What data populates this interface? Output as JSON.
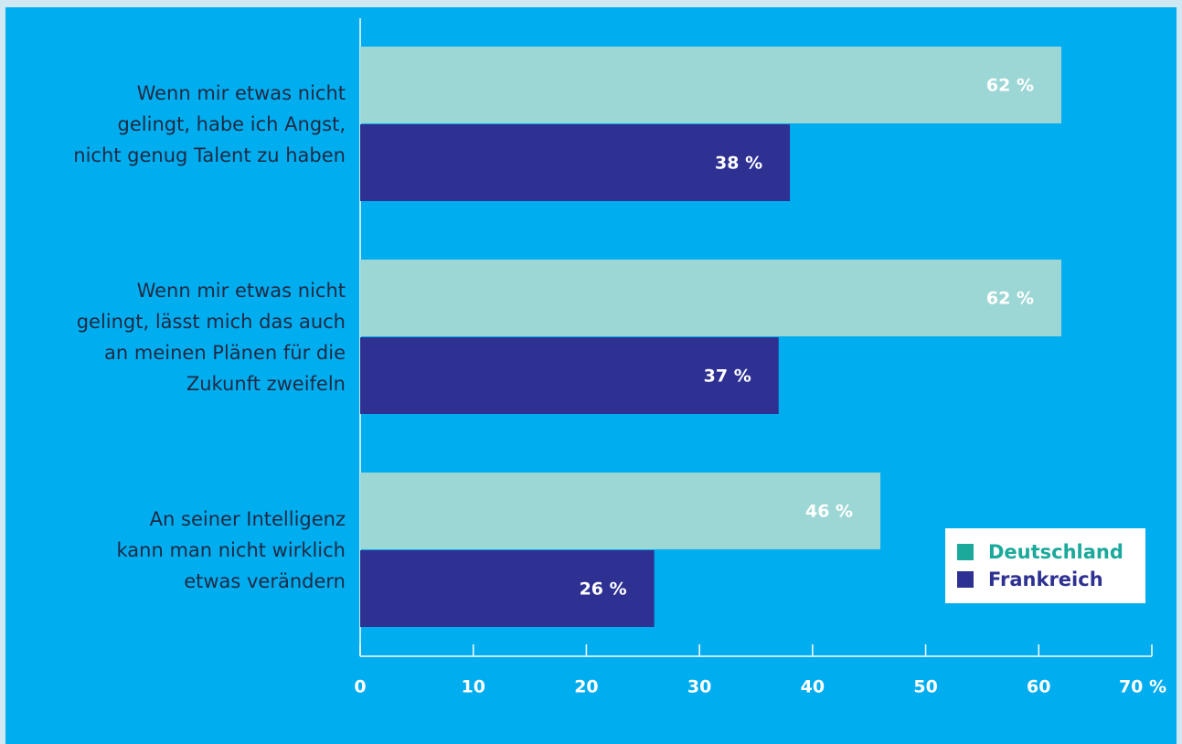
{
  "chart_data": {
    "type": "bar",
    "orientation": "horizontal",
    "categories": [
      "Wenn mir etwas nicht\ngelingt, habe ich Angst,\nnicht genug Talent zu haben",
      "Wenn mir etwas nicht\ngelingt, lässt mich das auch\nan meinen Plänen für die\nZukunft zweifeln",
      "An seiner Intelligenz\nkann man nicht wirklich\netwas verändern"
    ],
    "series": [
      {
        "name": "Deutschland",
        "color": "#9dd7d5",
        "legend_color": "#1aa99b",
        "values": [
          62,
          62,
          46
        ],
        "value_labels": [
          "62 %",
          "62 %",
          "46 %"
        ]
      },
      {
        "name": "Frankreich",
        "color": "#2e3192",
        "legend_color": "#2e3192",
        "values": [
          38,
          37,
          26
        ],
        "value_labels": [
          "38 %",
          "37 %",
          "26 %"
        ]
      }
    ],
    "xlim": [
      0,
      70
    ],
    "xticks": [
      0,
      10,
      20,
      30,
      40,
      50,
      60,
      {
        "value": 70,
        "label": "70 %"
      }
    ],
    "legend": "lower right"
  }
}
